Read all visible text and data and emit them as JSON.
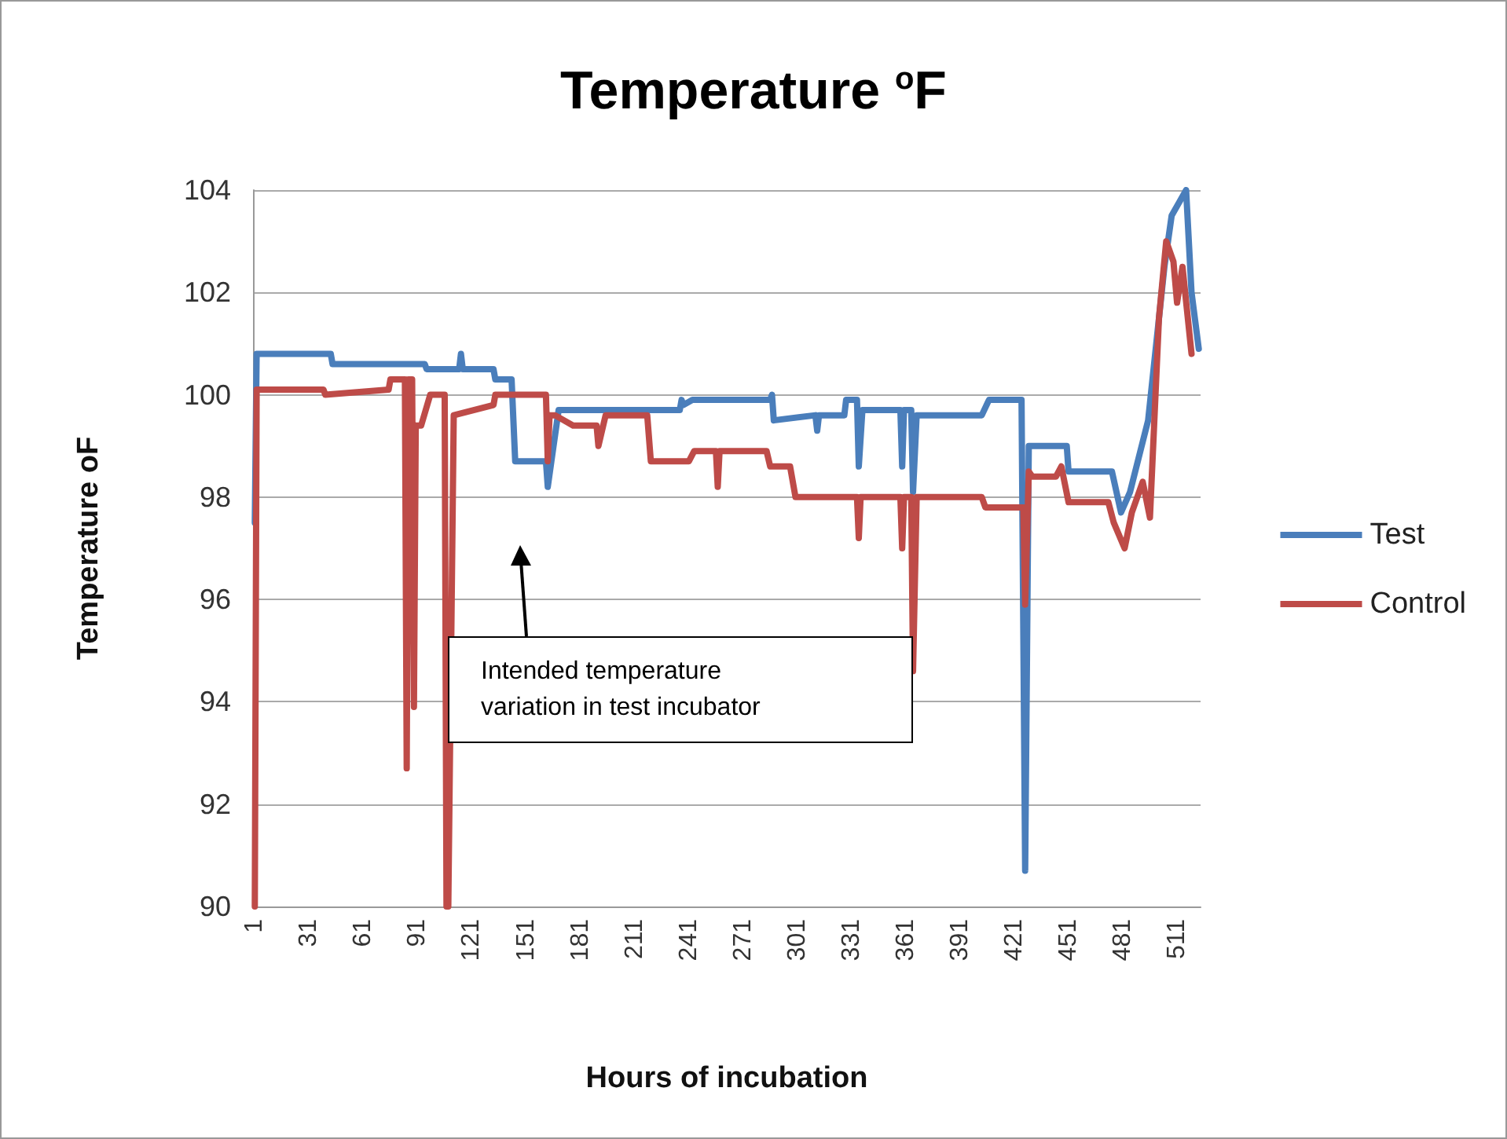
{
  "chart_data": {
    "type": "line",
    "title": "Temperature $^{o}$F",
    "xlabel": "Hours of incubation",
    "ylabel": "Temperature oF",
    "xlim": [
      0,
      524
    ],
    "xticks": [
      1,
      31,
      61,
      91,
      121,
      151,
      181,
      211,
      241,
      271,
      301,
      331,
      361,
      391,
      421,
      451,
      481,
      511
    ],
    "ylim": [
      90,
      104
    ],
    "yticks": [
      90,
      92,
      94,
      96,
      98,
      100,
      102,
      104
    ],
    "grid": "y",
    "legend": "right",
    "marker": "none",
    "line_style": "solid",
    "annotations": [
      "Intended temperature variation in test incubator"
    ],
    "series": [
      {
        "name": "Test",
        "color": "#4a7ebb",
        "x": [
          1,
          2,
          43,
          44,
          95,
          96,
          114,
          115,
          116,
          133,
          134,
          143,
          145,
          162,
          163,
          165,
          169,
          236,
          237,
          238,
          243,
          286,
          287,
          288,
          311,
          312,
          313,
          327,
          328,
          334,
          335,
          337,
          358,
          359,
          360,
          364,
          365,
          367,
          403,
          407,
          425,
          427,
          429,
          450,
          451,
          475,
          480,
          485,
          495,
          498,
          504,
          508,
          516,
          519,
          523
        ],
        "values": [
          97.5,
          100.8,
          100.8,
          100.6,
          100.6,
          100.5,
          100.5,
          100.8,
          100.5,
          100.5,
          100.3,
          100.3,
          98.7,
          98.7,
          98.2,
          98.7,
          99.7,
          99.7,
          99.9,
          99.8,
          99.9,
          99.9,
          100,
          99.5,
          99.6,
          99.3,
          99.6,
          99.6,
          99.9,
          99.9,
          98.6,
          99.7,
          99.7,
          98.6,
          99.7,
          99.7,
          98.1,
          99.6,
          99.6,
          99.9,
          99.9,
          90.7,
          99,
          99,
          98.5,
          98.5,
          97.7,
          98.1,
          99.5,
          100.5,
          102.5,
          103.5,
          104,
          102,
          100.9
        ]
      },
      {
        "name": "Control",
        "color": "#be4b48",
        "x": [
          1,
          2,
          39,
          40,
          75,
          76,
          84,
          85,
          86,
          88,
          89,
          90,
          93,
          98,
          106,
          107,
          108,
          111,
          133,
          134,
          162,
          163,
          164,
          167,
          177,
          190,
          191,
          195,
          218,
          220,
          241,
          244,
          256,
          257,
          258,
          284,
          286,
          297,
          300,
          334,
          335,
          336,
          358,
          359,
          360,
          364,
          365,
          367,
          403,
          405,
          426,
          427,
          429,
          431,
          444,
          447,
          451,
          473,
          476,
          482,
          486,
          492,
          496,
          501,
          505,
          509,
          511,
          514,
          519
        ],
        "values": [
          90,
          100.1,
          100.1,
          100,
          100.1,
          100.3,
          100.3,
          92.7,
          100.3,
          100.3,
          93.9,
          99.4,
          99.4,
          100,
          100,
          90,
          90,
          99.6,
          99.8,
          100,
          100,
          98.7,
          99.6,
          99.6,
          99.4,
          99.4,
          99,
          99.6,
          99.6,
          98.7,
          98.7,
          98.9,
          98.9,
          98.2,
          98.9,
          98.9,
          98.6,
          98.6,
          98,
          98,
          97.2,
          98,
          98,
          97,
          98,
          98,
          94.6,
          98,
          98,
          97.8,
          97.8,
          95.9,
          98.5,
          98.4,
          98.4,
          98.6,
          97.9,
          97.9,
          97.5,
          97,
          97.7,
          98.3,
          97.6,
          101.5,
          103,
          102.6,
          101.8,
          102.5,
          100.8
        ]
      }
    ]
  }
}
